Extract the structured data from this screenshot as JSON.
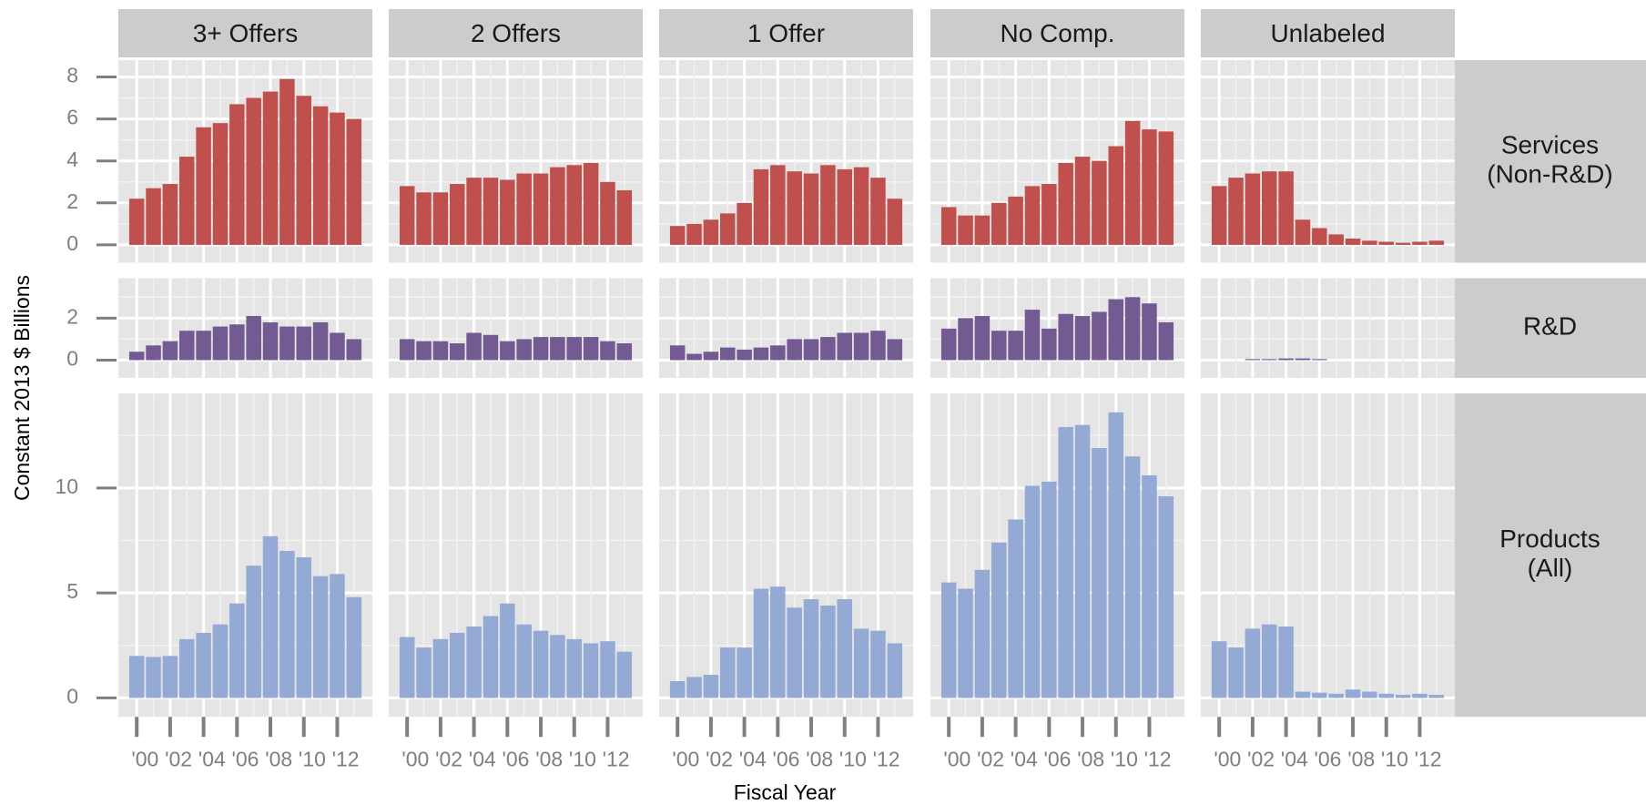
{
  "chart_data": {
    "type": "bar",
    "x_label": "Fiscal Year",
    "y_label": "Constant 2013 $ Billions",
    "columns": [
      "3+ Offers",
      "2 Offers",
      "1 Offer",
      "No Comp.",
      "Unlabeled"
    ],
    "categories": [
      "'00",
      null,
      "'02",
      null,
      "'04",
      null,
      "'06",
      null,
      "'08",
      null,
      "'10",
      null,
      "'12",
      null
    ],
    "grid": true,
    "rows": [
      {
        "label": [
          "Services",
          "(Non-R&D)"
        ],
        "color": "#c0504d",
        "ylim": [
          -0.85,
          8.8
        ],
        "yticks": [
          0,
          2,
          4,
          6,
          8
        ],
        "panels": [
          [
            2.2,
            2.7,
            2.9,
            4.2,
            5.6,
            5.8,
            6.7,
            7.0,
            7.3,
            7.9,
            7.1,
            6.6,
            6.3,
            6.0
          ],
          [
            2.8,
            2.5,
            2.5,
            2.9,
            3.2,
            3.2,
            3.1,
            3.4,
            3.4,
            3.7,
            3.8,
            3.9,
            3.0,
            2.6
          ],
          [
            0.9,
            1.0,
            1.2,
            1.5,
            2.0,
            3.6,
            3.8,
            3.5,
            3.4,
            3.8,
            3.6,
            3.7,
            3.2,
            2.2
          ],
          [
            1.8,
            1.4,
            1.4,
            2.0,
            2.3,
            2.8,
            2.9,
            3.9,
            4.2,
            4.0,
            4.7,
            5.9,
            5.5,
            5.4
          ],
          [
            2.8,
            3.2,
            3.4,
            3.5,
            3.5,
            1.2,
            0.8,
            0.5,
            0.3,
            0.2,
            0.15,
            0.1,
            0.15,
            0.2
          ]
        ]
      },
      {
        "label": [
          "R&D"
        ],
        "color": "#735a92",
        "ylim": [
          -0.85,
          3.9
        ],
        "yticks": [
          0,
          2
        ],
        "panels": [
          [
            0.4,
            0.7,
            0.9,
            1.4,
            1.4,
            1.6,
            1.7,
            2.1,
            1.8,
            1.6,
            1.6,
            1.8,
            1.3,
            1.0
          ],
          [
            1.0,
            0.9,
            0.9,
            0.8,
            1.3,
            1.2,
            0.9,
            1.0,
            1.1,
            1.1,
            1.1,
            1.1,
            0.9,
            0.8
          ],
          [
            0.7,
            0.3,
            0.4,
            0.6,
            0.5,
            0.6,
            0.7,
            1.0,
            1.0,
            1.1,
            1.3,
            1.3,
            1.4,
            1.0
          ],
          [
            1.5,
            2.0,
            2.1,
            1.4,
            1.4,
            2.4,
            1.5,
            2.2,
            2.1,
            2.3,
            2.9,
            3.0,
            2.7,
            1.8
          ],
          [
            0,
            0,
            0.05,
            0.05,
            0.08,
            0.08,
            0.05,
            0,
            0,
            0,
            0,
            0,
            0,
            0
          ]
        ]
      },
      {
        "label": [
          "Products",
          "(All)"
        ],
        "color": "#94aad5",
        "ylim": [
          -0.9,
          14.5
        ],
        "yticks": [
          0,
          5,
          10
        ],
        "panels": [
          [
            2.0,
            1.95,
            2.0,
            2.8,
            3.1,
            3.5,
            4.5,
            6.3,
            7.7,
            7.0,
            6.7,
            5.8,
            5.9,
            4.8
          ],
          [
            2.9,
            2.4,
            2.8,
            3.1,
            3.4,
            3.9,
            4.5,
            3.5,
            3.2,
            3.0,
            2.8,
            2.6,
            2.7,
            2.2
          ],
          [
            0.8,
            1.0,
            1.1,
            2.4,
            2.4,
            5.2,
            5.3,
            4.3,
            4.7,
            4.4,
            4.7,
            3.3,
            3.2,
            2.6
          ],
          [
            5.5,
            5.2,
            6.1,
            7.4,
            8.5,
            10.1,
            10.3,
            12.9,
            13.0,
            11.9,
            13.6,
            11.5,
            10.6,
            9.6
          ],
          [
            2.7,
            2.4,
            3.3,
            3.5,
            3.4,
            0.3,
            0.25,
            0.2,
            0.4,
            0.3,
            0.2,
            0.15,
            0.2,
            0.15
          ]
        ]
      }
    ]
  }
}
